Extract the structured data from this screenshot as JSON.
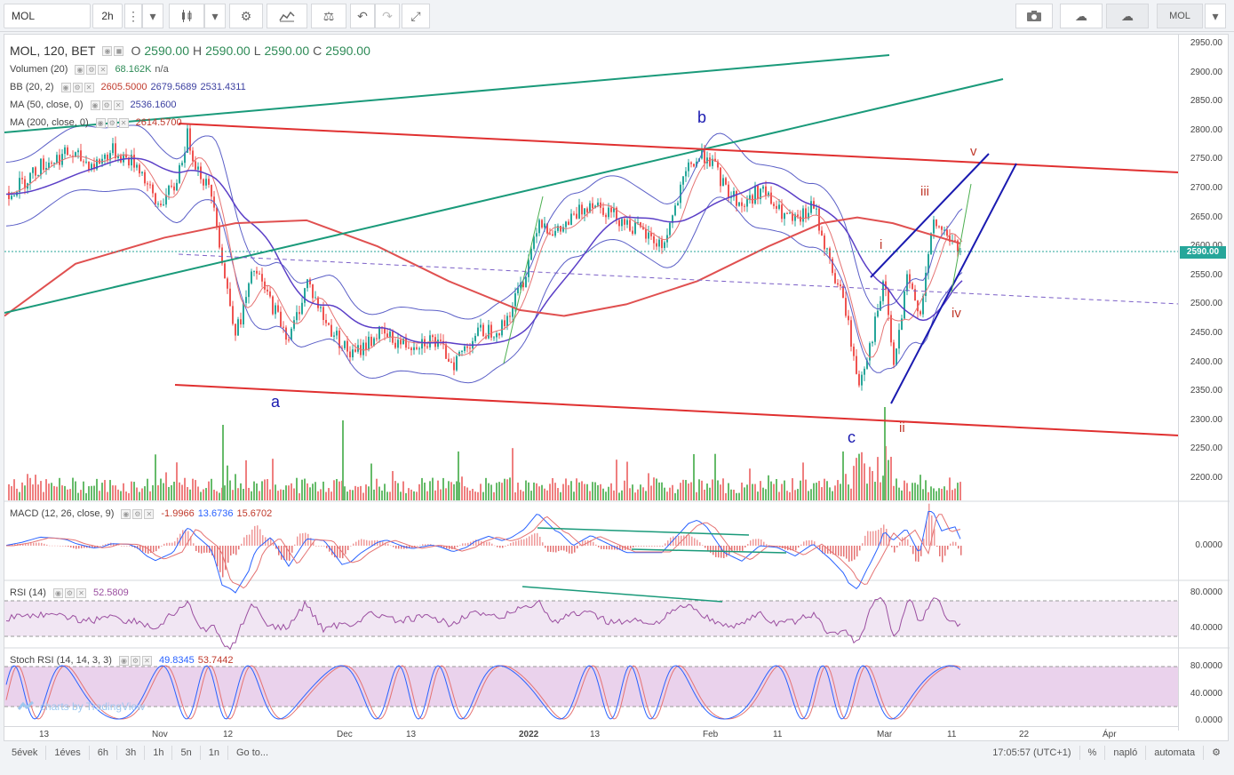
{
  "toolbar": {
    "symbol": "MOL",
    "interval": "2h",
    "right_symbol": "MOL"
  },
  "main": {
    "title": "MOL, 120, BET",
    "o_label": "O",
    "o_value": "2590.00",
    "h_label": "H",
    "h_value": "2590.00",
    "l_label": "L",
    "l_value": "2590.00",
    "c_label": "C",
    "c_value": "2590.00",
    "last_price": "2590.00",
    "legends": [
      {
        "name": "Volumen (20)",
        "values": [
          "68.162K",
          "n/a"
        ]
      },
      {
        "name": "BB (20, 2)",
        "values": [
          "2605.5000",
          "2679.5689",
          "2531.4311"
        ]
      },
      {
        "name": "MA (50, close, 0)",
        "values": [
          "2536.1600"
        ]
      },
      {
        "name": "MA (200, close, 0)",
        "values": [
          "2614.5700"
        ]
      }
    ],
    "price_ticks": [
      "2950.00",
      "2900.00",
      "2850.00",
      "2800.00",
      "2750.00",
      "2700.00",
      "2650.00",
      "2600.00",
      "2550.00",
      "2500.00",
      "2450.00",
      "2400.00",
      "2350.00",
      "2300.00",
      "2250.00",
      "2200.00"
    ],
    "wave_labels": {
      "a": "a",
      "b": "b",
      "c": "c",
      "i": "i",
      "ii": "ii",
      "iii": "iii",
      "iv": "iv",
      "v": "v"
    }
  },
  "macd": {
    "name": "MACD (12, 26, close, 9)",
    "values": [
      "-1.9966",
      "13.6736",
      "15.6702"
    ],
    "ticks": [
      "0.0000"
    ]
  },
  "rsi": {
    "name": "RSI (14)",
    "value": "52.5809",
    "ticks": [
      "80.0000",
      "40.0000"
    ]
  },
  "stoch": {
    "name": "Stoch RSI (14, 14, 3, 3)",
    "values": [
      "49.8345",
      "53.7442"
    ],
    "ticks": [
      "80.0000",
      "40.0000",
      "0.0000"
    ]
  },
  "time_axis": [
    "13",
    "Nov",
    "12",
    "Dec",
    "13",
    "2022",
    "13",
    "Feb",
    "11",
    "Mar",
    "11",
    "22",
    "Ápr"
  ],
  "watermark": "charts by TradingView",
  "bottombar": {
    "ranges": [
      "5évek",
      "1éves",
      "6h",
      "3h",
      "1h",
      "5n",
      "1n"
    ],
    "goto": "Go to...",
    "clock": "17:05:57 (UTC+1)",
    "percent": "%",
    "log": "napló",
    "auto": "automata"
  },
  "colors": {
    "up": "#26a69a",
    "down": "#ef5350",
    "bb": "#5b5fc7",
    "ma200": "#e05050",
    "macd": "#2962ff",
    "rsi": "#9b4fa0"
  }
}
